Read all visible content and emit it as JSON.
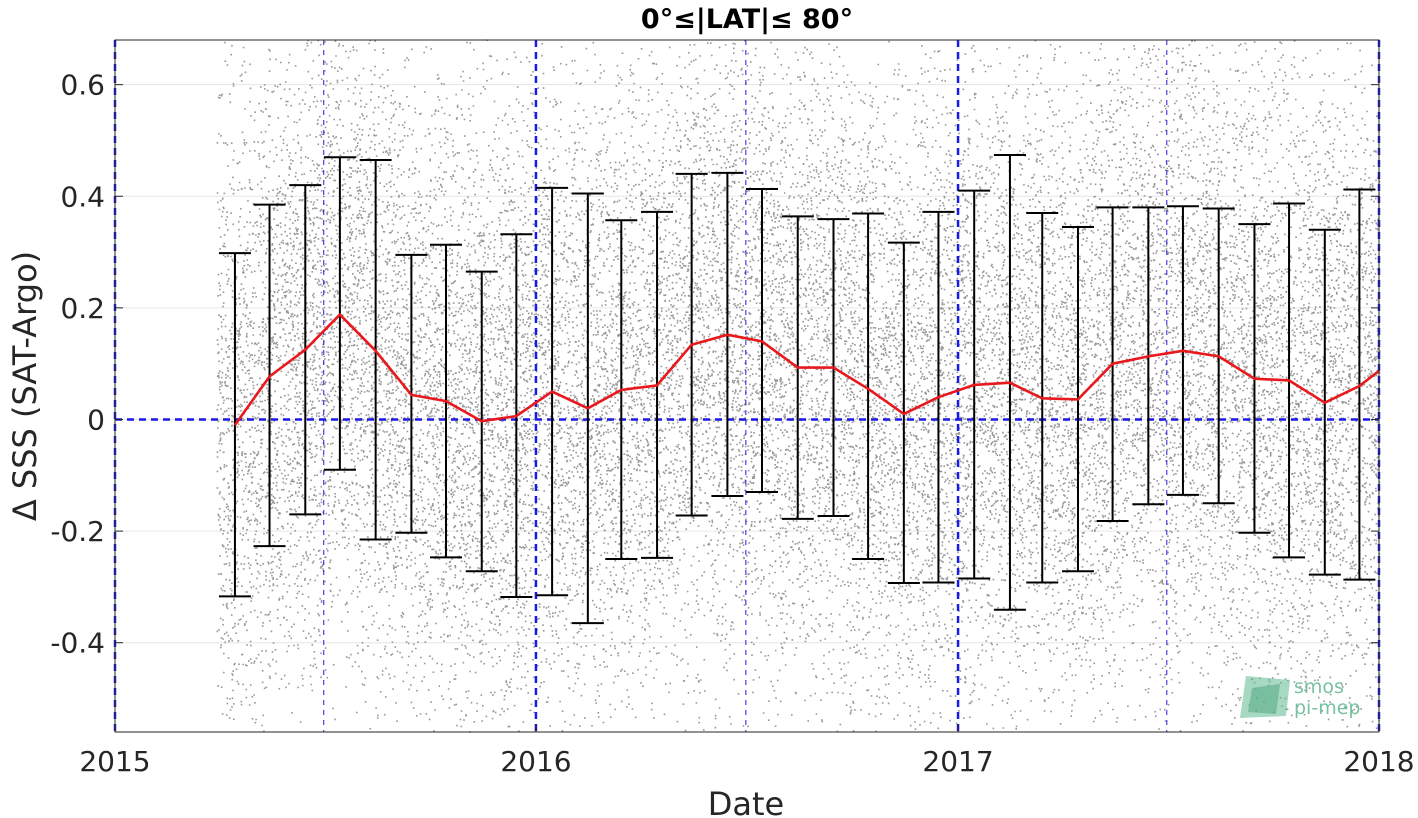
{
  "chart_data": {
    "type": "scatter",
    "title": "0°≤|LAT|≤ 80°",
    "xlabel": "Date",
    "ylabel": "Δ SSS (SAT-Argo)",
    "xlim": [
      "2015-01-01",
      "2018-01-01"
    ],
    "ylim": [
      -0.56,
      0.68
    ],
    "x_ticks": [
      "2015",
      "2016",
      "2017",
      "2018"
    ],
    "y_ticks": [
      0.6,
      0.4,
      0.2,
      0,
      -0.2,
      -0.4
    ],
    "y_tick_labels": [
      "0.6",
      "0.4",
      "0.2",
      "0",
      "-0.2",
      "-0.4"
    ],
    "grid": true,
    "scatter_cloud": {
      "color": "#8c8c8c",
      "x_start": "2015-03-30",
      "x_end": "2018-01-01",
      "y_center_follows": "monthly mean",
      "y_spread_std": 0.3
    },
    "monthly_stats": {
      "mean_color": "#e8181c",
      "errorbar_color": "#000000",
      "dates": [
        "2015-04-15",
        "2015-05-15",
        "2015-06-15",
        "2015-07-15",
        "2015-08-15",
        "2015-09-15",
        "2015-10-15",
        "2015-11-15",
        "2015-12-15",
        "2016-01-15",
        "2016-02-15",
        "2016-03-15",
        "2016-04-15",
        "2016-05-15",
        "2016-06-15",
        "2016-07-15",
        "2016-08-15",
        "2016-09-15",
        "2016-10-15",
        "2016-11-15",
        "2016-12-15",
        "2017-01-15",
        "2017-02-15",
        "2017-03-15",
        "2017-04-15",
        "2017-05-15",
        "2017-06-15",
        "2017-07-15",
        "2017-08-15",
        "2017-09-15",
        "2017-10-15",
        "2017-11-15",
        "2017-12-15",
        "2018-01-01"
      ],
      "mean": [
        -0.01,
        0.077,
        0.125,
        0.188,
        0.123,
        0.044,
        0.033,
        -0.003,
        0.006,
        0.05,
        0.02,
        0.053,
        0.061,
        0.134,
        0.152,
        0.14,
        0.093,
        0.093,
        0.055,
        0.01,
        0.04,
        0.062,
        0.066,
        0.038,
        0.036,
        0.1,
        0.113,
        0.123,
        0.113,
        0.073,
        0.07,
        0.03,
        0.06,
        0.087
      ],
      "upper": [
        0.298,
        0.385,
        0.42,
        0.47,
        0.465,
        0.295,
        0.313,
        0.265,
        0.332,
        0.415,
        0.405,
        0.357,
        0.372,
        0.44,
        0.442,
        0.413,
        0.364,
        0.359,
        0.369,
        0.317,
        0.372,
        0.41,
        0.474,
        0.37,
        0.345,
        0.38,
        0.38,
        0.382,
        0.378,
        0.35,
        0.387,
        0.34,
        0.412,
        null
      ],
      "lower": [
        -0.317,
        -0.227,
        -0.17,
        -0.09,
        -0.215,
        -0.203,
        -0.247,
        -0.272,
        -0.318,
        -0.315,
        -0.365,
        -0.25,
        -0.248,
        -0.172,
        -0.137,
        -0.13,
        -0.178,
        -0.173,
        -0.25,
        -0.293,
        -0.292,
        -0.285,
        -0.341,
        -0.292,
        -0.272,
        -0.182,
        -0.152,
        -0.135,
        -0.15,
        -0.203,
        -0.247,
        -0.278,
        -0.287,
        null
      ]
    },
    "reference_lines": {
      "color": "#1a1ae6",
      "zero_line": 0,
      "year_lines": [
        "2015-01-01",
        "2016-01-01",
        "2017-01-01",
        "2018-01-01"
      ],
      "midyear_lines": [
        "2015-07-01",
        "2016-07-01",
        "2017-07-01"
      ]
    },
    "logo": {
      "line1": "smos",
      "line2": "pi-mep"
    }
  }
}
